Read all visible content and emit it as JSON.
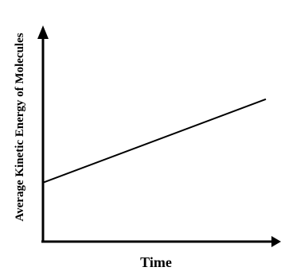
{
  "chart_data": {
    "type": "line",
    "title": "",
    "xlabel": "Time",
    "ylabel": "Average Kinetic Energy of Molecules",
    "grid": false,
    "legend": "none",
    "x_ticks": [],
    "y_ticks": [],
    "xlim": [
      0,
      10
    ],
    "ylim": [
      0,
      10
    ],
    "series": [
      {
        "color": "#000000",
        "points": [
          {
            "x": 0,
            "y": 2.9
          },
          {
            "x": 10,
            "y": 7.0
          }
        ]
      }
    ]
  }
}
